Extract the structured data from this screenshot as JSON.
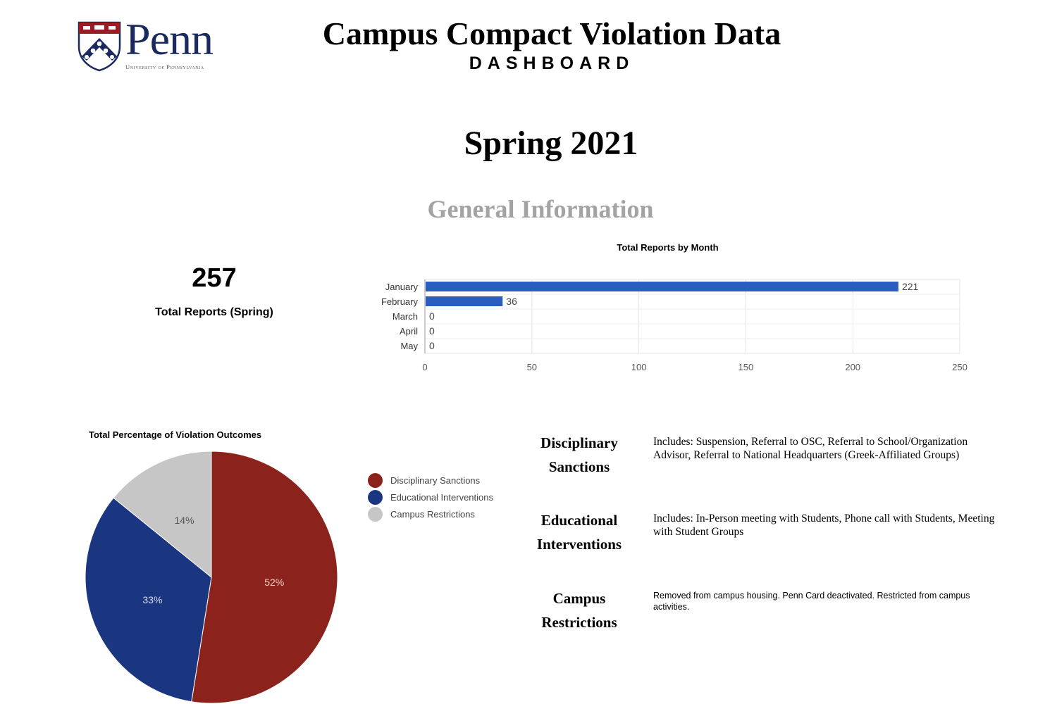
{
  "header": {
    "logo": {
      "name": "Penn",
      "subtitle": "University of Pennsylvania",
      "shield_colors": {
        "top": "#9b1c22",
        "body": "#1b2a5e",
        "accent": "#ffffff"
      }
    },
    "title": "Campus Compact Violation Data",
    "subtitle": "DASHBOARD"
  },
  "semester": "Spring 2021",
  "section_title": "General Information",
  "summary": {
    "total_reports": "257",
    "total_reports_label": "Total Reports (Spring)"
  },
  "colors": {
    "bar": "#2b5cbf",
    "disciplinary": "#8b231c",
    "educational": "#1b3680",
    "campus": "#c6c6c6",
    "section_title": "#a3a3a3"
  },
  "chart_data": [
    {
      "type": "bar",
      "orientation": "horizontal",
      "title": "Total Reports by Month",
      "categories": [
        "January",
        "February",
        "March",
        "April",
        "May"
      ],
      "values": [
        221,
        36,
        0,
        0,
        0
      ],
      "value_labels": [
        "221",
        "36",
        "0",
        "0",
        "0"
      ],
      "xlabel": "",
      "ylabel": "",
      "xlim": [
        0,
        250
      ],
      "x_ticks": [
        "0",
        "50",
        "100",
        "150",
        "200",
        "250"
      ],
      "grid": true,
      "legend": "none"
    },
    {
      "type": "pie",
      "title": "Total Percentage of Violation Outcomes",
      "categories": [
        "Disciplinary Sanctions",
        "Educational Interventions",
        "Campus Restrictions"
      ],
      "values": [
        52,
        33,
        14
      ],
      "value_labels": [
        "52%",
        "33%",
        "14%"
      ],
      "colors": [
        "#8b231c",
        "#1b3680",
        "#c6c6c6"
      ],
      "legend": "right"
    }
  ],
  "definitions": [
    {
      "term_line1": "Disciplinary",
      "term_line2": "Sanctions",
      "description": "Includes: Suspension, Referral to OSC, Referral to School/Organization Advisor, Referral to National Headquarters (Greek-Affiliated Groups)"
    },
    {
      "term_line1": "Educational",
      "term_line2": "Interventions",
      "description": "Includes: In-Person meeting with Students, Phone call with Students, Meeting with Student Groups"
    },
    {
      "term_line1": "Campus",
      "term_line2": "Restrictions",
      "description": "Removed from campus housing. Penn Card deactivated. Restricted from campus activities."
    }
  ]
}
